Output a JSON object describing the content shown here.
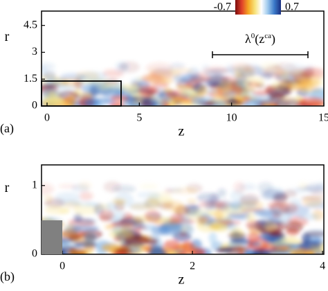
{
  "chart_data": [
    {
      "type": "field",
      "panel": "(a)",
      "xlabel": "z",
      "ylabel": "r",
      "xlim": [
        -0.3,
        15
      ],
      "xticks": [
        0,
        5,
        10,
        15
      ],
      "ylim": [
        0,
        5.3
      ],
      "yticks": [
        0,
        1.5,
        3,
        4.5
      ],
      "annotation": [
        "λ",
        "0",
        "(z",
        "ca",
        ")"
      ],
      "colorbar": {
        "ticks": [
          -0.7,
          0.7
        ],
        "colors": [
          "#7a0c0c",
          "#e0402a",
          "#f5a623",
          "#f7e27a",
          "#ffffff",
          "#9cc8ec",
          "#3a78c8",
          "#1a2f80"
        ]
      }
    },
    {
      "type": "field",
      "panel": "(b)",
      "xlabel": "z",
      "ylabel": "r",
      "xlim": [
        -0.32,
        4.02
      ],
      "xticks": [
        0,
        2,
        4
      ],
      "ylim": [
        0,
        1.3
      ],
      "yticks": [
        0,
        1
      ]
    }
  ]
}
